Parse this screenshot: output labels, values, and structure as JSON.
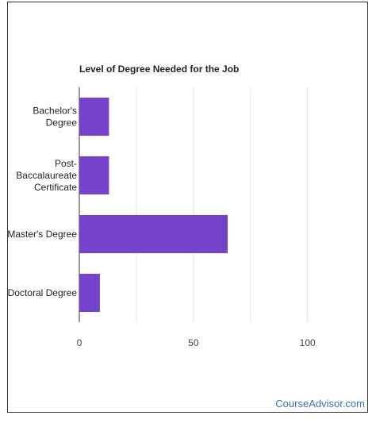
{
  "chart_data": {
    "type": "bar",
    "orientation": "horizontal",
    "title": "Level of Degree Needed for the Job",
    "categories": [
      [
        "Bachelor's",
        "Degree"
      ],
      [
        "Post-",
        "Baccalaureate",
        "Certificate"
      ],
      [
        "Master's Degree"
      ],
      [
        "Doctoral Degree"
      ]
    ],
    "values": [
      13,
      13,
      65,
      9
    ],
    "xlim": [
      0,
      130
    ],
    "xticks": [
      0,
      50,
      100
    ],
    "grid": true,
    "legend": "none",
    "bar_color": "#7443c9"
  },
  "footer": {
    "link_label": "CourseAdvisor.com"
  }
}
